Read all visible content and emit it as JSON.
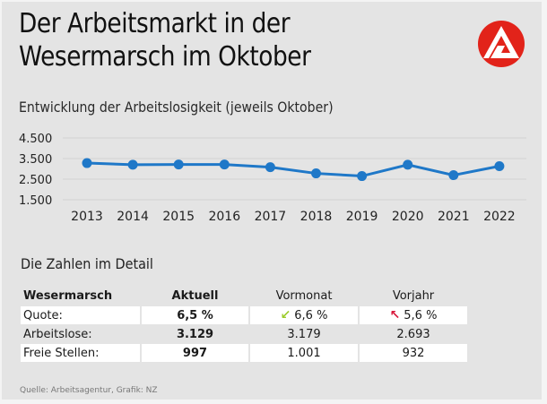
{
  "header": {
    "title_line1": "Der Arbeitsmarkt in der",
    "title_line2": "Wesermarsch im Oktober",
    "logo": "arbeitsagentur-logo-icon"
  },
  "chart_data": {
    "type": "line",
    "title": "Entwicklung der Arbeitslosigkeit (jeweils Oktober)",
    "xlabel": "",
    "ylabel": "",
    "categories": [
      "2013",
      "2014",
      "2015",
      "2016",
      "2017",
      "2018",
      "2019",
      "2020",
      "2021",
      "2022"
    ],
    "series": [
      {
        "name": "Arbeitslose",
        "values": [
          3280,
          3200,
          3210,
          3210,
          3080,
          2780,
          2650,
          3200,
          2693,
          3129
        ],
        "color": "#1f78c8"
      }
    ],
    "yticks": [
      4500,
      3500,
      2500,
      1500
    ],
    "ytick_labels": [
      "4.500",
      "3.500",
      "2.500",
      "1.500"
    ],
    "ylim": [
      1500,
      4500
    ],
    "grid": true,
    "legend": "none"
  },
  "detail": {
    "heading": "Die Zahlen im Detail",
    "columns": [
      "Wesermarsch",
      "Aktuell",
      "Vormonat",
      "Vorjahr"
    ],
    "rows": [
      {
        "label": "Quote:",
        "aktuell": "6,5 %",
        "vormonat": "6,6 %",
        "vorjahr": "5,6 %",
        "vormonat_icon": "arrow-down-left-icon",
        "vorjahr_icon": "arrow-up-left-icon"
      },
      {
        "label": "Arbeitslose:",
        "aktuell": "3.129",
        "vormonat": "3.179",
        "vorjahr": "2.693"
      },
      {
        "label": "Freie Stellen:",
        "aktuell": "997",
        "vormonat": "1.001",
        "vorjahr": "932"
      }
    ],
    "colors": {
      "down": "#9ccc2c",
      "up": "#d8173a"
    }
  },
  "source": "Quelle: Arbeitsagentur, Grafik: NZ"
}
